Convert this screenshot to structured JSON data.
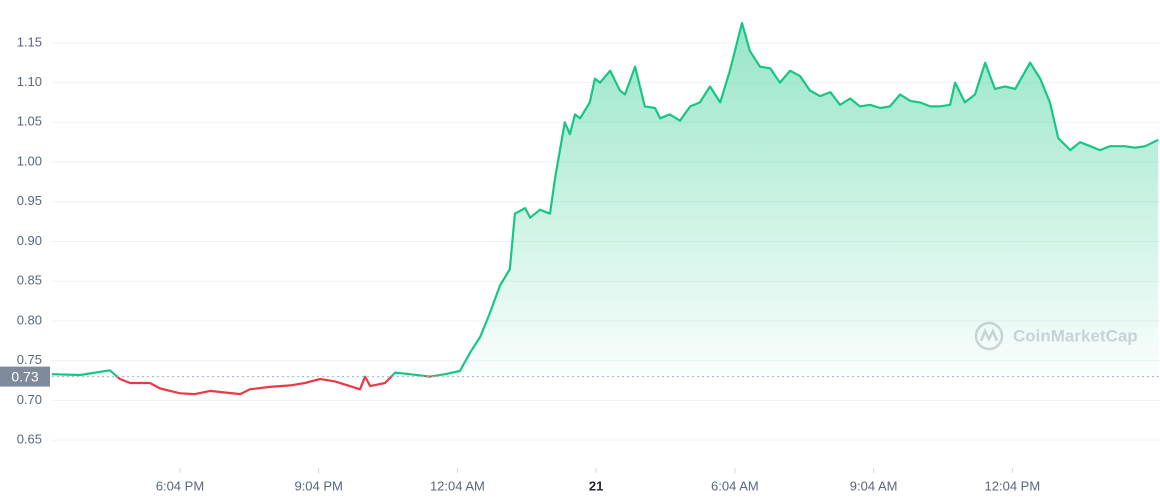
{
  "chart_data": {
    "type": "line",
    "watermark": "CoinMarketCap",
    "x": [
      15.3,
      15.91,
      16.55,
      16.77,
      16.99,
      17.42,
      17.64,
      18.07,
      18.39,
      18.72,
      19.04,
      19.37,
      19.58,
      20.01,
      20.45,
      20.77,
      21.1,
      21.42,
      21.74,
      21.96,
      22.07,
      22.18,
      22.5,
      22.72,
      23.04,
      23.47,
      23.8,
      24.12,
      24.34,
      24.56,
      24.77,
      24.99,
      25.2,
      25.31,
      25.53,
      25.64,
      25.85,
      26.07,
      26.18,
      26.39,
      26.5,
      26.61,
      26.72,
      26.93,
      27.04,
      27.15,
      27.37,
      27.58,
      27.69,
      27.91,
      28.12,
      28.34,
      28.45,
      28.66,
      28.88,
      29.1,
      29.31,
      29.53,
      29.75,
      29.96,
      30.22,
      30.39,
      30.61,
      30.83,
      31.04,
      31.26,
      31.48,
      31.69,
      31.91,
      32.13,
      32.34,
      32.56,
      32.77,
      32.99,
      33.21,
      33.42,
      33.64,
      33.86,
      34.07,
      34.29,
      34.5,
      34.72,
      34.83,
      35.04,
      35.26,
      35.48,
      35.69,
      35.91,
      36.13,
      36.45,
      36.67,
      36.88,
      37.06,
      37.32,
      37.53,
      37.75,
      37.96,
      38.18,
      38.5,
      38.72,
      38.94,
      39.22
    ],
    "values": [
      0.733,
      0.732,
      0.738,
      0.727,
      0.722,
      0.722,
      0.715,
      0.709,
      0.708,
      0.712,
      0.71,
      0.708,
      0.714,
      0.717,
      0.719,
      0.722,
      0.727,
      0.724,
      0.718,
      0.714,
      0.73,
      0.718,
      0.722,
      0.735,
      0.733,
      0.73,
      0.733,
      0.737,
      0.76,
      0.78,
      0.81,
      0.845,
      0.865,
      0.935,
      0.942,
      0.93,
      0.94,
      0.935,
      0.98,
      1.05,
      1.035,
      1.06,
      1.055,
      1.075,
      1.105,
      1.1,
      1.115,
      1.09,
      1.085,
      1.12,
      1.07,
      1.068,
      1.055,
      1.06,
      1.052,
      1.07,
      1.075,
      1.095,
      1.075,
      1.115,
      1.175,
      1.14,
      1.12,
      1.118,
      1.1,
      1.115,
      1.108,
      1.09,
      1.083,
      1.088,
      1.072,
      1.08,
      1.07,
      1.072,
      1.068,
      1.07,
      1.085,
      1.077,
      1.075,
      1.07,
      1.07,
      1.072,
      1.1,
      1.075,
      1.085,
      1.125,
      1.092,
      1.095,
      1.092,
      1.125,
      1.105,
      1.075,
      1.03,
      1.015,
      1.025,
      1.02,
      1.015,
      1.02,
      1.02,
      1.018,
      1.02,
      1.028
    ],
    "reference": {
      "value": 0.73,
      "label": "0.73"
    },
    "up_color": "#16c784",
    "down_color": "#ea3943",
    "xlim": [
      15.3,
      39.26
    ],
    "xticks": [
      {
        "value": 18.067,
        "label": "6:04 PM"
      },
      {
        "value": 21.067,
        "label": "9:04 PM"
      },
      {
        "value": 24.067,
        "label": "12:04 AM"
      },
      {
        "value": 27.067,
        "label": "21"
      },
      {
        "value": 30.067,
        "label": "6:04 AM"
      },
      {
        "value": 33.067,
        "label": "9:04 AM"
      },
      {
        "value": 36.067,
        "label": "12:04 PM"
      }
    ],
    "ylim": [
      0.615,
      1.18
    ],
    "yticks": [
      0.65,
      {
        "value": 0.7,
        "label": "0.70"
      },
      0.75,
      {
        "value": 0.8,
        "label": "0.80"
      },
      0.85,
      {
        "value": 0.9,
        "label": "0.90"
      },
      0.95,
      {
        "value": 1.0,
        "label": "1.00"
      },
      1.05,
      {
        "value": 1.1,
        "label": "1.10"
      },
      1.15
    ],
    "grid": true
  }
}
